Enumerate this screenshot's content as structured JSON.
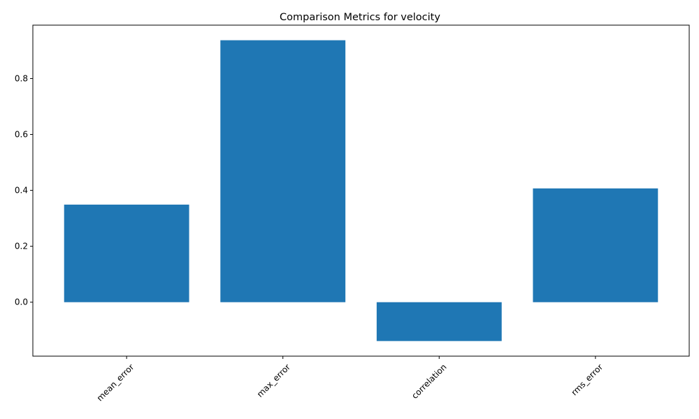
{
  "chart_data": {
    "type": "bar",
    "title": "Comparison Metrics for velocity",
    "xlabel": "",
    "ylabel": "",
    "categories": [
      "mean_error",
      "max_error",
      "correlation",
      "rms_error"
    ],
    "values": [
      0.349,
      0.937,
      -0.139,
      0.407
    ],
    "ylim": [
      -0.193,
      0.991
    ],
    "yticks": [
      0.0,
      0.2,
      0.4,
      0.6,
      0.8
    ],
    "ytick_labels": [
      "0.0",
      "0.2",
      "0.4",
      "0.6",
      "0.8"
    ],
    "xtick_rotation_deg": 45,
    "grid": false,
    "legend": "none",
    "bar_color": "#1f77b4"
  }
}
